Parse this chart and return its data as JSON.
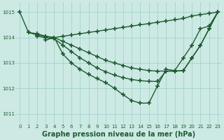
{
  "background_color": "#cce9e4",
  "grid_color": "#9dcec7",
  "line_color": "#1e5c30",
  "marker": "+",
  "markersize": 4,
  "linewidth": 1.0,
  "markeredgewidth": 1.2,
  "xlabel": "Graphe pression niveau de la mer (hPa)",
  "xlabel_fontsize": 7.0,
  "xlabel_color": "#1e5c30",
  "ylim": [
    1010.6,
    1015.4
  ],
  "yticks": [
    1011,
    1012,
    1013,
    1014,
    1015
  ],
  "xticks": [
    0,
    1,
    2,
    3,
    4,
    5,
    6,
    7,
    8,
    9,
    10,
    11,
    12,
    13,
    14,
    15,
    16,
    17,
    18,
    19,
    20,
    21,
    22,
    23
  ],
  "tick_fontsize": 5.0,
  "tick_color": "#1e5c30",
  "lines": [
    {
      "x": [
        0,
        1,
        2,
        3,
        4,
        5,
        6,
        7,
        8,
        9,
        10,
        11,
        12,
        13,
        14,
        15,
        16,
        17,
        18,
        19,
        20,
        21,
        22,
        23
      ],
      "y": [
        1015.0,
        1014.2,
        1014.15,
        1014.05,
        1014.0,
        1014.05,
        1014.1,
        1014.15,
        1014.2,
        1014.25,
        1014.3,
        1014.35,
        1014.4,
        1014.45,
        1014.5,
        1014.55,
        1014.6,
        1014.65,
        1014.7,
        1014.75,
        1014.85,
        1014.9,
        1014.95,
        1015.0
      ]
    },
    {
      "x": [
        1,
        2,
        3,
        4,
        5,
        6,
        7,
        8,
        9,
        10,
        11,
        12,
        13,
        14,
        15,
        16,
        17,
        18,
        19,
        20,
        21,
        22,
        23
      ],
      "y": [
        1014.2,
        1014.1,
        1014.05,
        1014.0,
        1013.85,
        1013.7,
        1013.55,
        1013.4,
        1013.25,
        1013.1,
        1013.0,
        1012.9,
        1012.8,
        1012.75,
        1012.7,
        1012.68,
        1012.68,
        1012.68,
        1012.7,
        1013.2,
        1013.7,
        1014.35,
        1015.0
      ]
    },
    {
      "x": [
        2,
        3,
        4,
        5,
        6,
        7,
        8,
        9,
        10,
        11,
        12,
        13,
        14,
        15,
        16,
        17,
        18,
        19,
        20,
        21,
        22,
        23
      ],
      "y": [
        1014.05,
        1014.0,
        1013.95,
        1013.7,
        1013.45,
        1013.2,
        1013.0,
        1012.8,
        1012.65,
        1012.52,
        1012.42,
        1012.35,
        1012.3,
        1012.28,
        1012.27,
        1012.68,
        1012.68,
        1012.7,
        1013.2,
        1013.7,
        1014.35,
        1015.0
      ]
    },
    {
      "x": [
        3,
        4,
        5,
        6,
        7,
        8,
        9,
        10,
        11,
        12,
        13,
        14,
        15,
        16,
        17,
        18,
        19,
        20,
        21,
        22,
        23
      ],
      "y": [
        1013.9,
        1014.0,
        1013.35,
        1013.0,
        1012.75,
        1012.55,
        1012.38,
        1012.22,
        1012.0,
        1011.75,
        1011.52,
        1011.42,
        1011.42,
        1012.1,
        1012.75,
        1012.7,
        1013.2,
        1013.7,
        1014.35,
        1014.45,
        1015.0
      ]
    }
  ]
}
